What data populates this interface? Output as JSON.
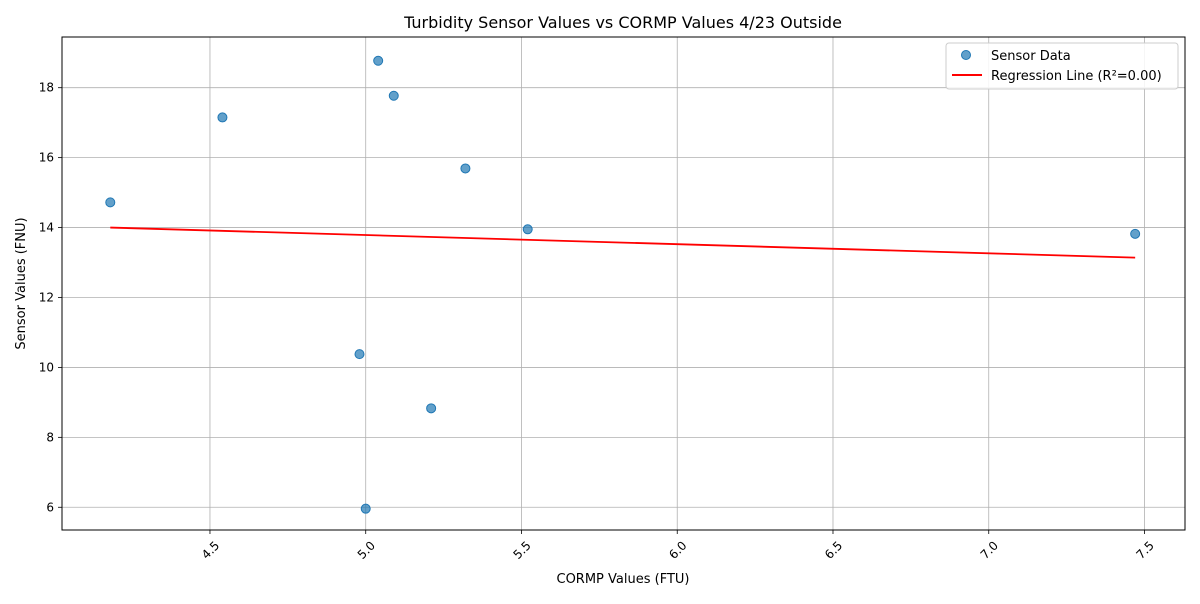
{
  "chart_data": {
    "type": "scatter",
    "title": "Turbidity Sensor Values vs CORMP Values 4/23 Outside",
    "xlabel": "CORMP Values (FTU)",
    "ylabel": "Sensor Values (FNU)",
    "xlim": [
      4.025,
      7.63
    ],
    "ylim": [
      5.35,
      19.45
    ],
    "xticks": [
      4.5,
      5.0,
      5.5,
      6.0,
      6.5,
      7.0,
      7.5
    ],
    "xtick_labels": [
      "4.5",
      "5.0",
      "5.5",
      "6.0",
      "6.5",
      "7.0",
      "7.5"
    ],
    "yticks": [
      6,
      8,
      10,
      12,
      14,
      16,
      18
    ],
    "ytick_labels": [
      "6",
      "8",
      "10",
      "12",
      "14",
      "16",
      "18"
    ],
    "grid": true,
    "legend_position": "top-right",
    "series": [
      {
        "name": "Sensor Data",
        "kind": "scatter",
        "color": "#1f77b4",
        "points": [
          {
            "x": 4.18,
            "y": 14.72
          },
          {
            "x": 4.54,
            "y": 17.15
          },
          {
            "x": 4.98,
            "y": 10.38
          },
          {
            "x": 5.0,
            "y": 5.96
          },
          {
            "x": 5.04,
            "y": 18.77
          },
          {
            "x": 5.09,
            "y": 17.77
          },
          {
            "x": 5.21,
            "y": 8.83
          },
          {
            "x": 5.32,
            "y": 15.69
          },
          {
            "x": 5.52,
            "y": 13.95
          },
          {
            "x": 7.47,
            "y": 13.82
          }
        ]
      },
      {
        "name": "Regression Line (R²=0.00)",
        "kind": "line",
        "color": "#ff0000",
        "points": [
          {
            "x": 4.18,
            "y": 14.0
          },
          {
            "x": 7.47,
            "y": 13.14
          }
        ]
      }
    ]
  }
}
